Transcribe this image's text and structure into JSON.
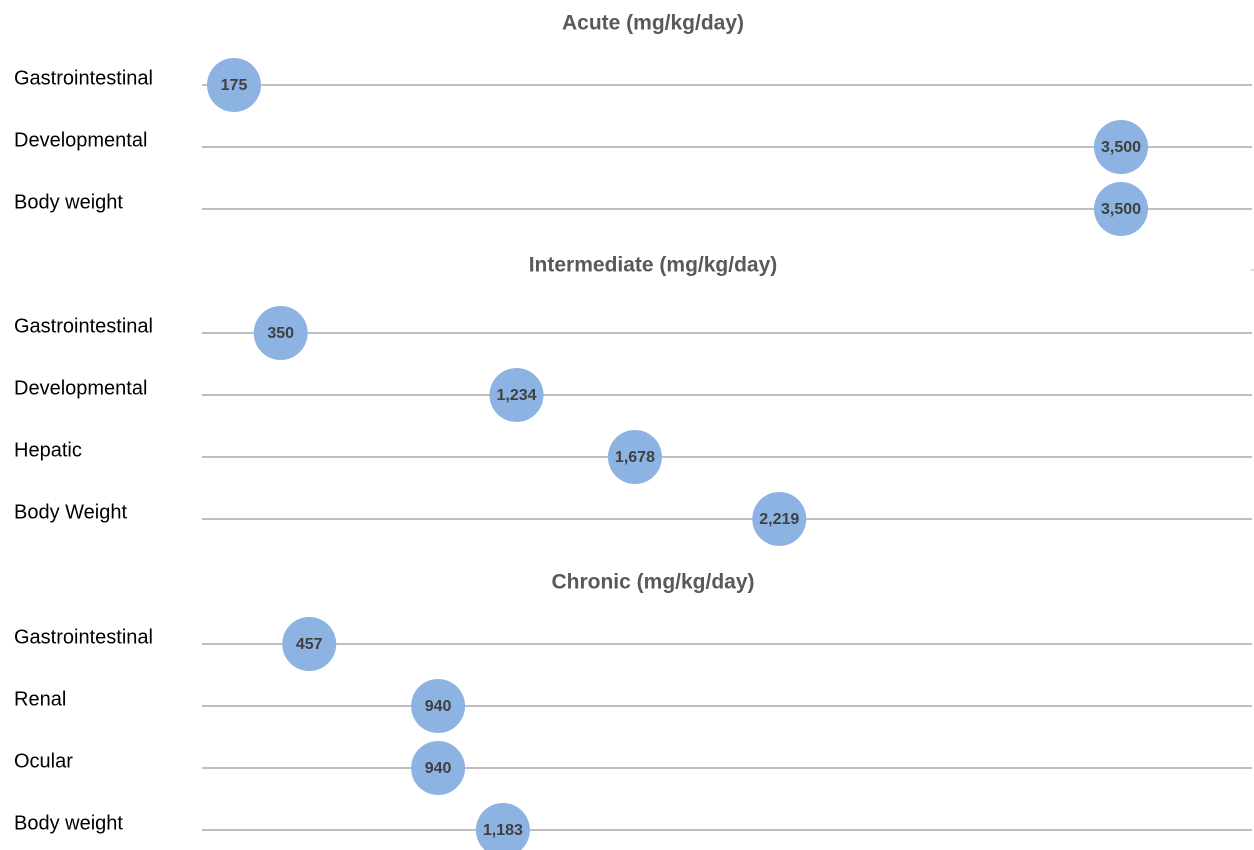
{
  "colors": {
    "bubble": "#8DB3E2",
    "line": "#BFBFBF",
    "label": "#000000",
    "title": "#595959",
    "value": "#404040"
  },
  "chart_data": [
    {
      "type": "scatter",
      "title": "Acute (mg/kg/day)",
      "categories": [
        "Gastrointestinal",
        "Developmental",
        "Body weight"
      ],
      "values": [
        175,
        3500,
        3500
      ],
      "value_labels": [
        "175",
        "3,500",
        "3,500"
      ],
      "grid": true
    },
    {
      "type": "scatter",
      "title": "Intermediate (mg/kg/day)",
      "categories": [
        "Gastrointestinal",
        "Developmental",
        "Hepatic",
        "Body Weight"
      ],
      "values": [
        350,
        1234,
        1678,
        2219
      ],
      "value_labels": [
        "350",
        "1,234",
        "1,678",
        "2,219"
      ],
      "grid": true
    },
    {
      "type": "scatter",
      "title": "Chronic (mg/kg/day)",
      "categories": [
        "Gastrointestinal",
        "Renal",
        "Ocular",
        "Body weight"
      ],
      "values": [
        457,
        940,
        940,
        1183
      ],
      "value_labels": [
        "457",
        "940",
        "940",
        "1,183"
      ],
      "grid": true
    }
  ]
}
